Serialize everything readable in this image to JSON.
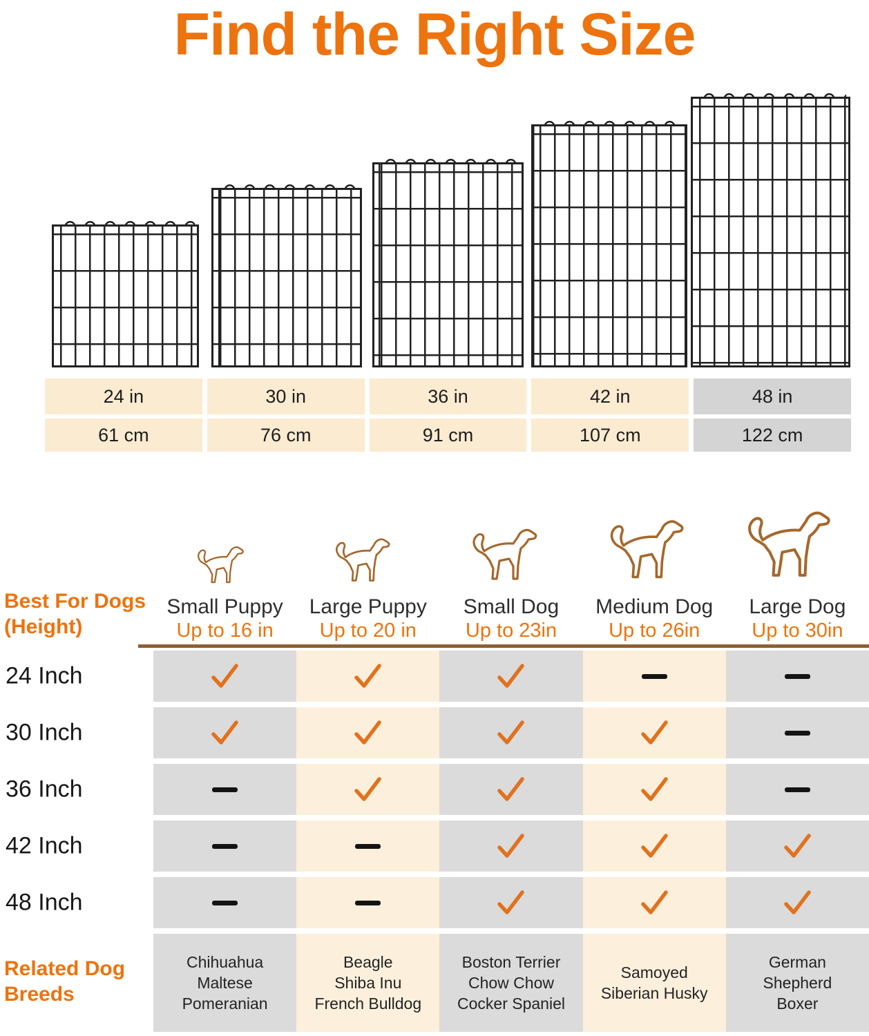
{
  "title": "Find the Right Size",
  "colors": {
    "orange": "#ED730E",
    "cream_table": "#FBEBD1",
    "gray_table": "#D4D4D4",
    "cream_matrix": "#FCF0DC",
    "gray_matrix": "#DBDBDB",
    "brown_divider": "#8E5F35",
    "dog_outline": "#A5682C",
    "check": "#E2711D",
    "dash": "#141414",
    "wire": "#212121"
  },
  "panels": [
    "wire-panel-24in",
    "wire-panel-30in",
    "wire-panel-36in",
    "wire-panel-42in",
    "wire-panel-48in"
  ],
  "size_table": {
    "rows": [
      [
        "24 in",
        "30 in",
        "36 in",
        "42 in",
        "48 in"
      ],
      [
        "61 cm",
        "76 cm",
        "91 cm",
        "107 cm",
        "122 cm"
      ]
    ],
    "highlight_column": 4
  },
  "dog_columns": [
    {
      "name": "Small Puppy",
      "height": "Up to 16 in",
      "icon": "chihuahua-outline-icon"
    },
    {
      "name": "Large Puppy",
      "height": "Up to 20 in",
      "icon": "terrier-outline-icon"
    },
    {
      "name": "Small Dog",
      "height": "Up to 23in",
      "icon": "beagle-outline-icon"
    },
    {
      "name": "Medium Dog",
      "height": "Up to 26in",
      "icon": "labrador-outline-icon"
    },
    {
      "name": "Large Dog",
      "height": "Up to 30in",
      "icon": "mastiff-outline-icon"
    }
  ],
  "row_header": {
    "line1": "Best For Dogs",
    "line2": "(Height)"
  },
  "matrix": {
    "rows": [
      {
        "label": "24 Inch",
        "cells": [
          "check",
          "check",
          "check",
          "dash",
          "dash"
        ]
      },
      {
        "label": "30 Inch",
        "cells": [
          "check",
          "check",
          "check",
          "check",
          "dash"
        ]
      },
      {
        "label": "36 Inch",
        "cells": [
          "dash",
          "check",
          "check",
          "check",
          "dash"
        ]
      },
      {
        "label": "42 Inch",
        "cells": [
          "dash",
          "dash",
          "check",
          "check",
          "check"
        ]
      },
      {
        "label": "48 Inch",
        "cells": [
          "dash",
          "dash",
          "check",
          "check",
          "check"
        ]
      }
    ]
  },
  "breeds_header": {
    "line1": "Related Dog",
    "line2": "Breeds"
  },
  "breeds": [
    [
      "Chihuahua",
      "Maltese",
      "Pomeranian"
    ],
    [
      "Beagle",
      "Shiba Inu",
      "French Bulldog"
    ],
    [
      "Boston Terrier",
      "Chow Chow",
      "Cocker Spaniel"
    ],
    [
      "Samoyed",
      "Siberian Husky"
    ],
    [
      "German Shepherd",
      "Boxer"
    ]
  ]
}
